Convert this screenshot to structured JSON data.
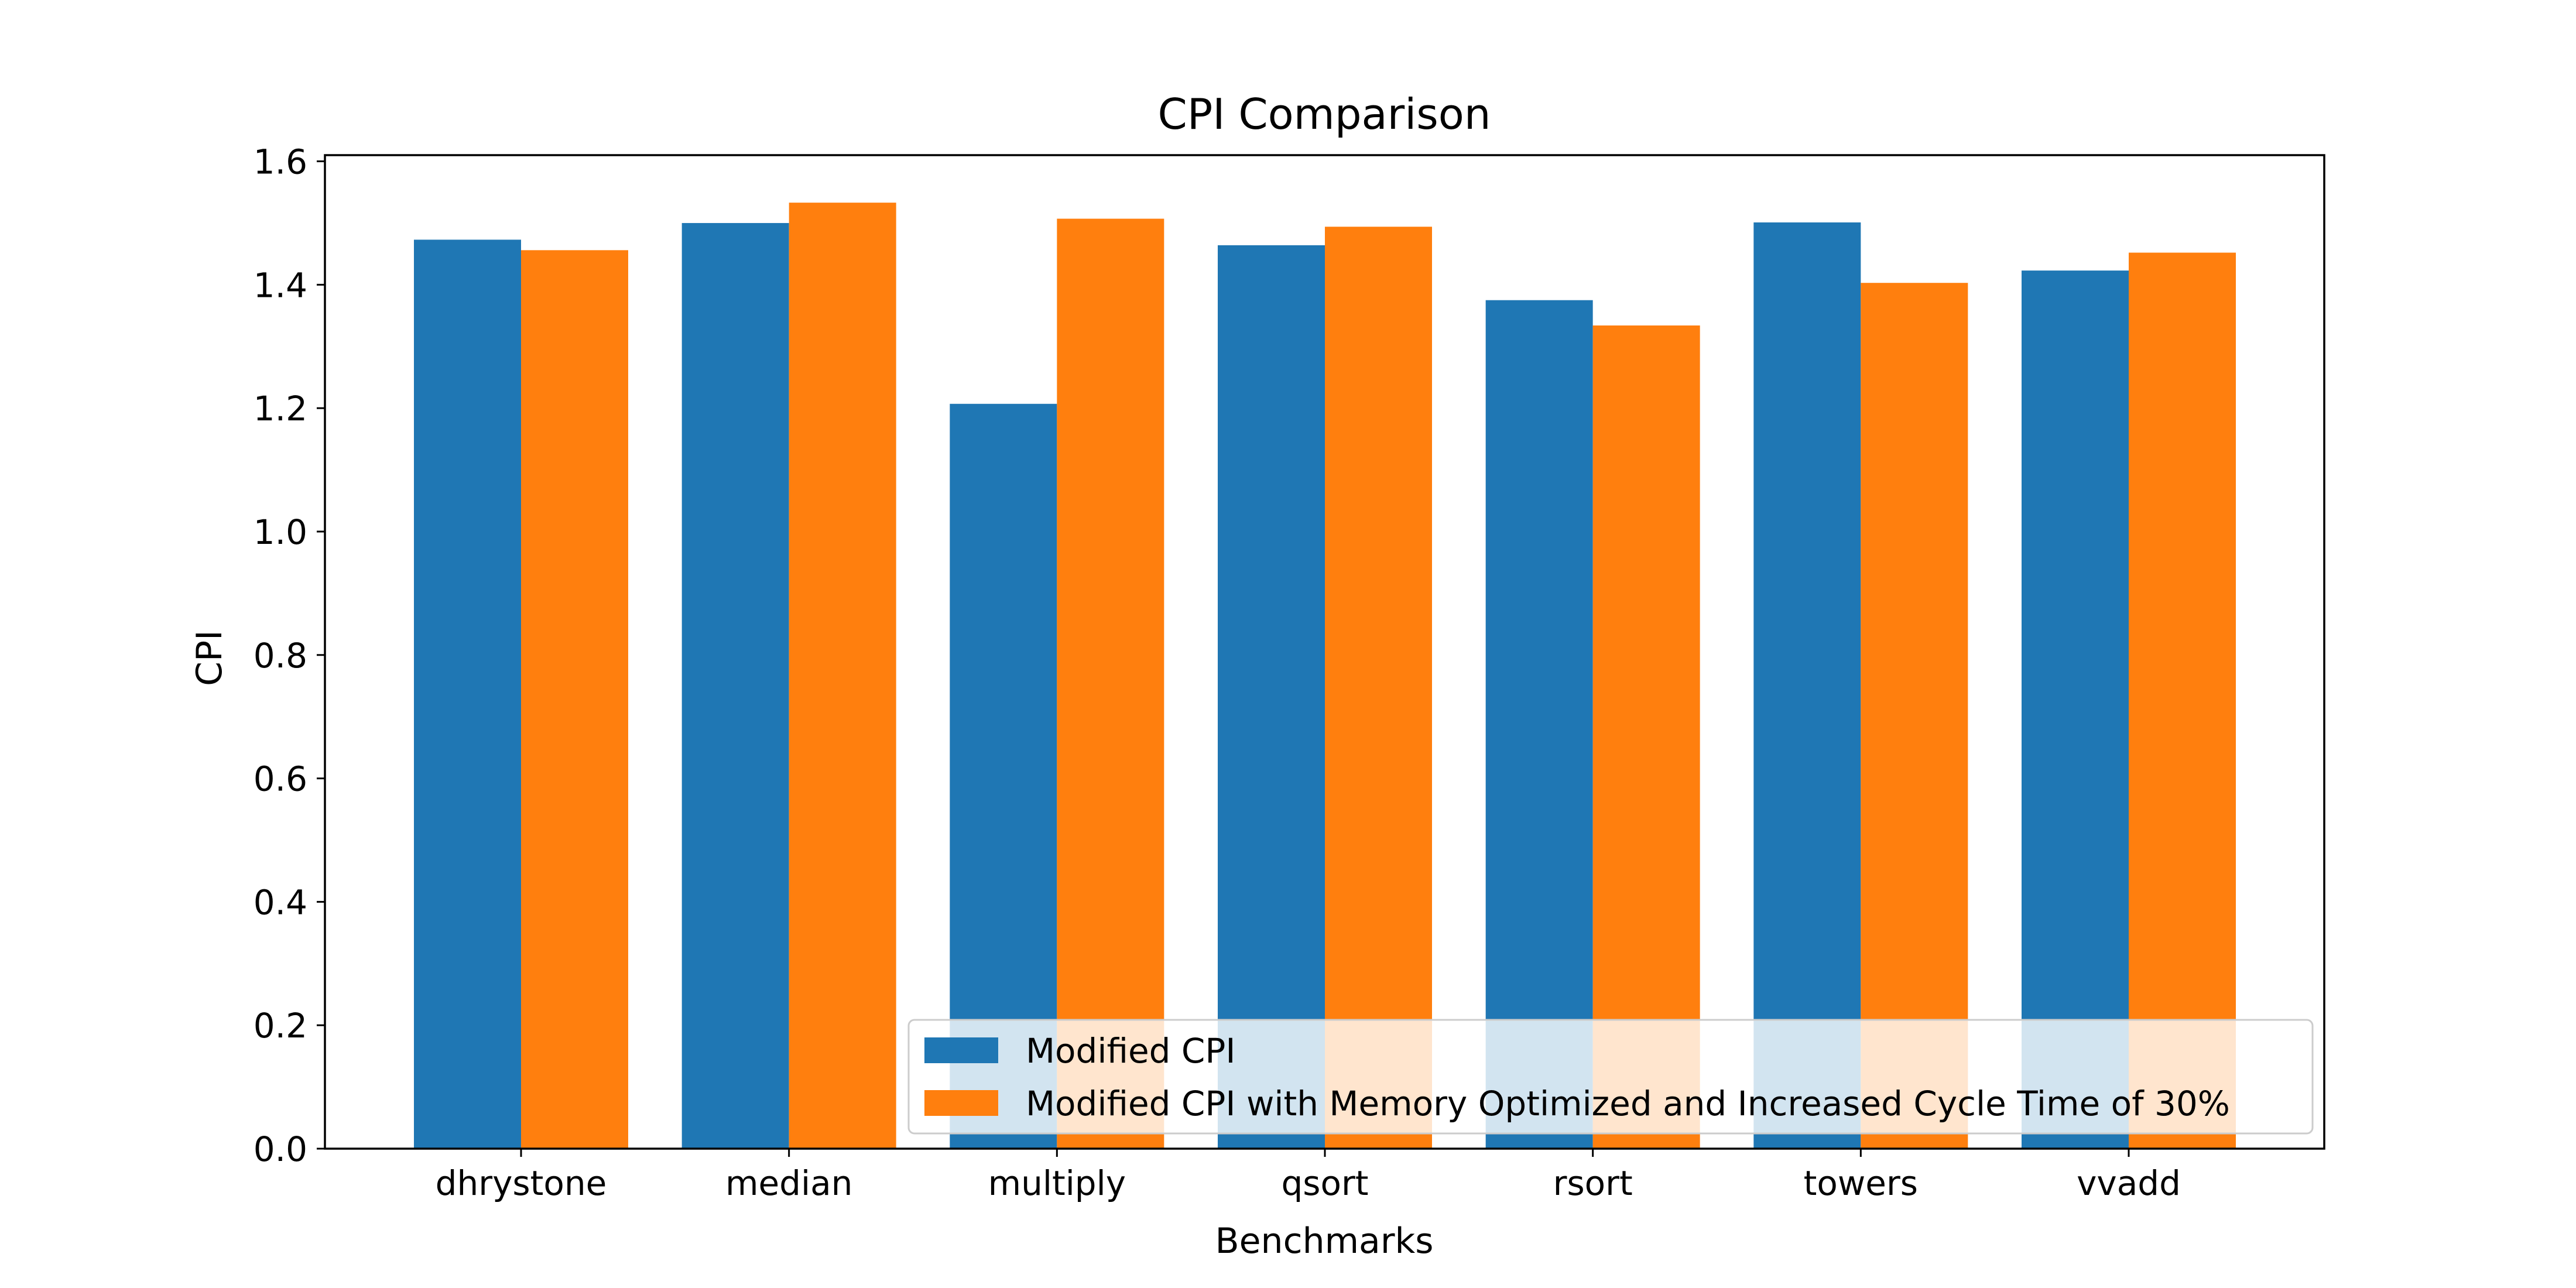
{
  "chart_data": {
    "type": "bar",
    "title": "CPI Comparison",
    "xlabel": "Benchmarks",
    "ylabel": "CPI",
    "categories": [
      "dhrystone",
      "median",
      "multiply",
      "qsort",
      "rsort",
      "towers",
      "vvadd"
    ],
    "series": [
      {
        "name": "Modified CPI",
        "color": "#1f77b4",
        "values": [
          1.473,
          1.5,
          1.207,
          1.464,
          1.375,
          1.501,
          1.423
        ]
      },
      {
        "name": "Modified CPI with Memory Optimized and Increased Cycle Time of 30%",
        "color": "#ff7f0e",
        "values": [
          1.456,
          1.533,
          1.507,
          1.494,
          1.334,
          1.403,
          1.452
        ]
      }
    ],
    "ylim": [
      0,
      1.61
    ],
    "yticks": [
      "0.0",
      "0.2",
      "0.4",
      "0.6",
      "0.8",
      "1.0",
      "1.2",
      "1.4",
      "1.6"
    ],
    "grid": false,
    "legend_position": "lower-right"
  }
}
